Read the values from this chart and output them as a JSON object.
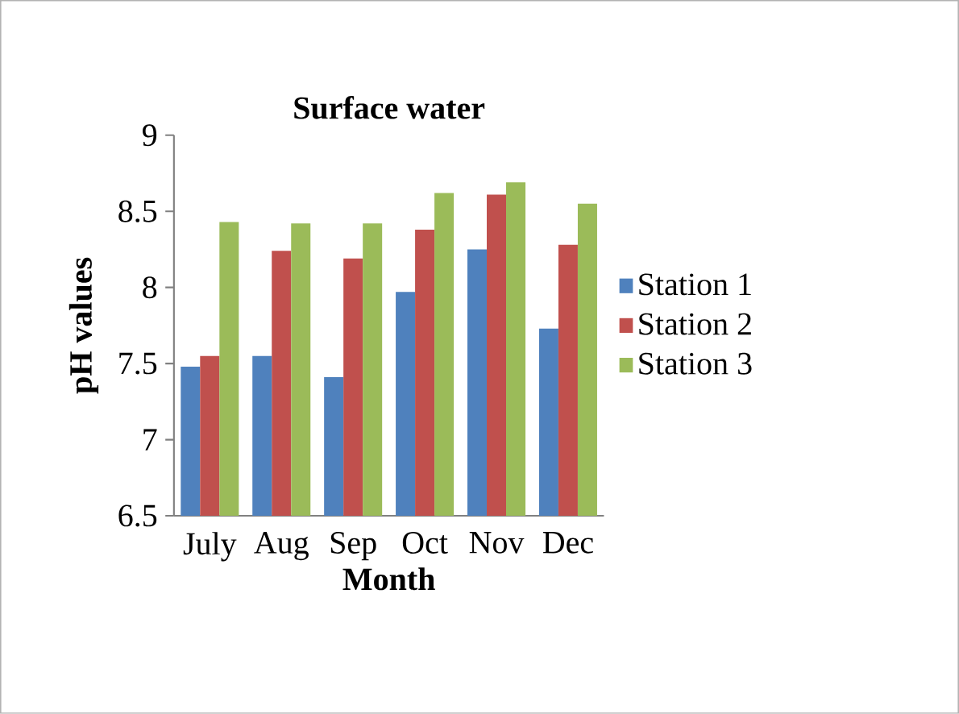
{
  "chart_data": {
    "type": "bar",
    "title": "Surface water",
    "xlabel": "Month",
    "ylabel": "pH values",
    "categories": [
      "July",
      "Aug",
      "Sep",
      "Oct",
      "Nov",
      "Dec"
    ],
    "series": [
      {
        "name": "Station 1",
        "color": "#4f81bd",
        "values": [
          7.48,
          7.55,
          7.41,
          7.97,
          8.25,
          7.73
        ]
      },
      {
        "name": "Station 2",
        "color": "#c0504d",
        "values": [
          7.55,
          8.24,
          8.19,
          8.38,
          8.61,
          8.28
        ]
      },
      {
        "name": "Station 3",
        "color": "#9bbb59",
        "values": [
          8.43,
          8.42,
          8.42,
          8.62,
          8.69,
          8.55
        ]
      }
    ],
    "ylim": [
      6.5,
      9
    ],
    "yticks": [
      6.5,
      7,
      7.5,
      8,
      8.5,
      9
    ],
    "grid": false,
    "legend": "right"
  }
}
